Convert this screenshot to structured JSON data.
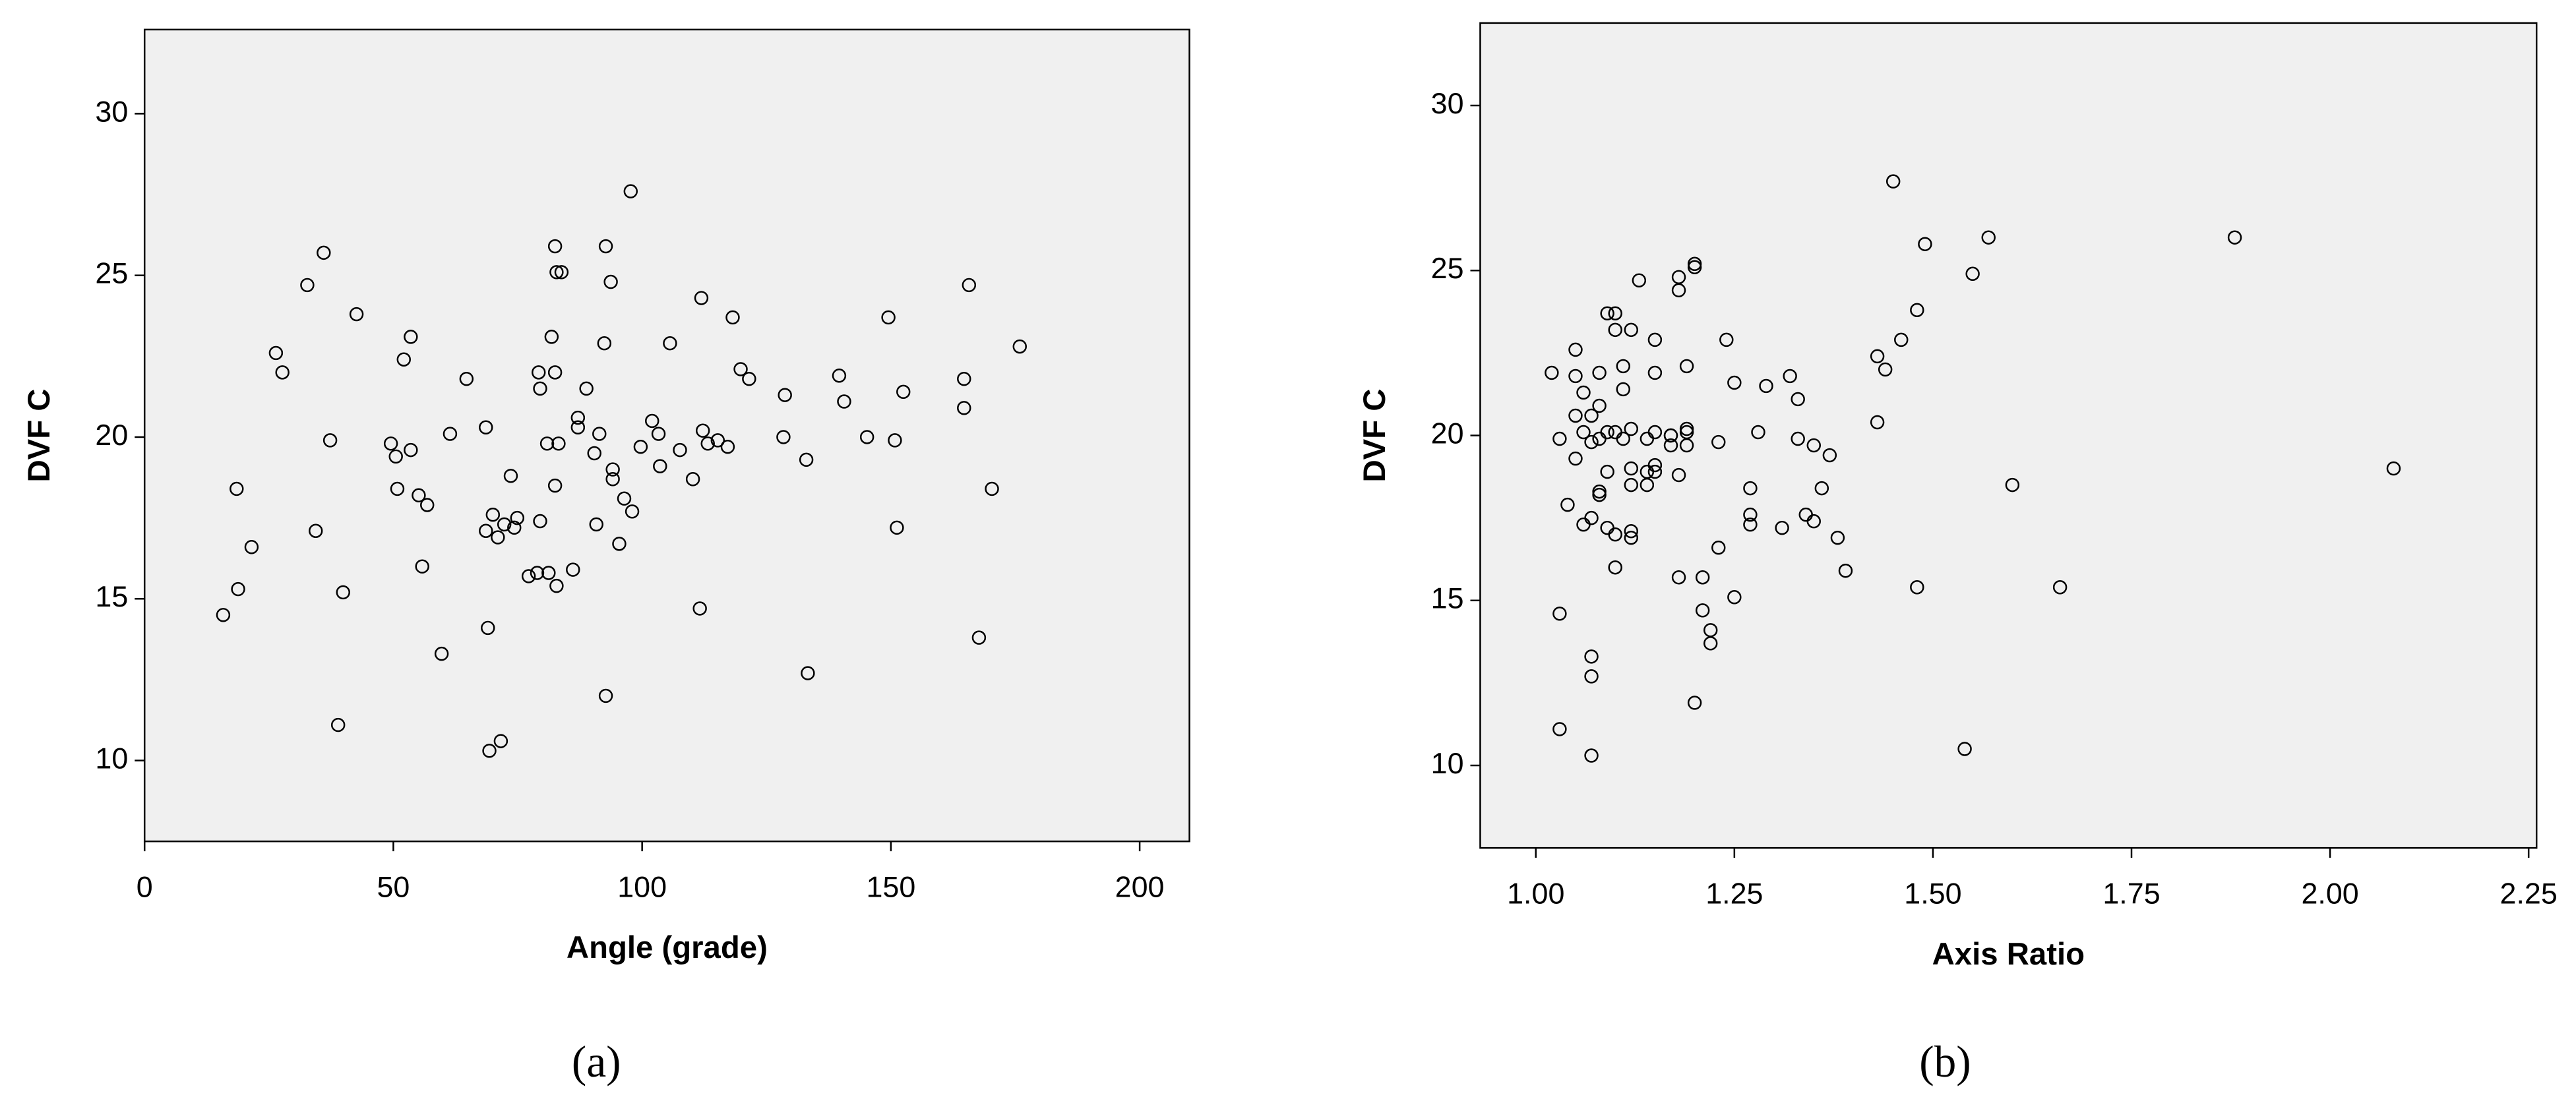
{
  "chart_data": [
    {
      "type": "scatter",
      "caption": "(a)",
      "x_label": "Angle (grade)",
      "y_label": "DVF C",
      "color": "#000000",
      "plot_background": "#f0f0f0",
      "xlim": [
        0,
        210
      ],
      "ylim": [
        7.5,
        32.6
      ],
      "xticks": [
        0,
        50,
        100,
        150,
        200
      ],
      "yticks": [
        10,
        15,
        20,
        25,
        30
      ],
      "x": [
        15.8,
        18.5,
        18.8,
        21.5,
        26.4,
        27.7,
        32.7,
        34.4,
        36.0,
        37.3,
        38.9,
        39.9,
        42.6,
        49.5,
        50.5,
        50.8,
        52.1,
        53.5,
        53.5,
        55.1,
        55.8,
        56.8,
        59.7,
        61.4,
        64.7,
        68.6,
        68.6,
        69.0,
        69.3,
        70.0,
        71.0,
        71.6,
        72.3,
        73.6,
        74.3,
        74.9,
        77.2,
        78.9,
        79.2,
        79.5,
        79.5,
        80.9,
        81.2,
        81.8,
        82.5,
        82.5,
        82.5,
        82.8,
        82.8,
        83.2,
        83.8,
        86.1,
        87.1,
        87.1,
        88.8,
        90.4,
        90.8,
        91.4,
        92.4,
        92.7,
        92.7,
        93.7,
        94.1,
        94.1,
        95.4,
        96.4,
        97.7,
        98.0,
        99.7,
        102.0,
        103.3,
        103.6,
        105.6,
        107.6,
        110.2,
        111.6,
        111.9,
        112.2,
        113.2,
        115.2,
        117.2,
        118.2,
        119.8,
        121.5,
        128.4,
        128.7,
        133.0,
        133.3,
        139.6,
        140.6,
        145.2,
        149.5,
        150.8,
        151.2,
        152.5,
        164.7,
        164.7,
        165.7,
        167.7,
        170.3,
        175.9
      ],
      "values": [
        14.5,
        18.4,
        15.3,
        16.6,
        22.6,
        22.0,
        24.7,
        17.1,
        25.7,
        19.9,
        11.1,
        15.2,
        23.8,
        19.8,
        19.4,
        18.4,
        22.4,
        23.1,
        19.6,
        18.2,
        16.0,
        17.9,
        13.3,
        20.1,
        21.8,
        20.3,
        17.1,
        14.1,
        10.3,
        17.6,
        16.9,
        10.6,
        17.3,
        18.8,
        17.2,
        17.5,
        15.7,
        15.8,
        22.0,
        21.5,
        17.4,
        19.8,
        15.8,
        23.1,
        25.9,
        22.0,
        18.5,
        15.4,
        25.1,
        19.8,
        25.1,
        15.9,
        20.6,
        20.3,
        21.5,
        19.5,
        17.3,
        20.1,
        22.9,
        25.9,
        12.0,
        24.8,
        19.0,
        18.7,
        16.7,
        18.1,
        27.6,
        17.7,
        19.7,
        20.5,
        20.1,
        19.1,
        22.9,
        19.6,
        18.7,
        14.7,
        24.3,
        20.2,
        19.8,
        19.9,
        19.7,
        23.7,
        22.1,
        21.8,
        20.0,
        21.3,
        19.3,
        12.7,
        21.9,
        21.1,
        20.0,
        23.7,
        19.9,
        17.2,
        21.4,
        21.8,
        20.9,
        24.7,
        13.8,
        18.4,
        22.8
      ]
    },
    {
      "type": "scatter",
      "caption": "(b)",
      "x_label": "Axis Ratio",
      "y_label": "DVF C",
      "color": "#000000",
      "plot_background": "#f0f0f0",
      "xlim": [
        0.93,
        2.26
      ],
      "ylim": [
        7.5,
        32.5
      ],
      "xticks": [
        {
          "value": 1,
          "label": "1.00"
        },
        1.25,
        {
          "value": 1.5,
          "label": "1.50"
        },
        1.75,
        {
          "value": 2,
          "label": "2.00"
        },
        2.25
      ],
      "yticks": [
        10,
        15,
        20,
        25,
        30
      ],
      "x": [
        1.02,
        1.03,
        1.03,
        1.03,
        1.04,
        1.05,
        1.05,
        1.05,
        1.05,
        1.06,
        1.06,
        1.06,
        1.07,
        1.07,
        1.07,
        1.07,
        1.07,
        1.07,
        1.08,
        1.08,
        1.08,
        1.08,
        1.08,
        1.09,
        1.09,
        1.09,
        1.09,
        1.1,
        1.1,
        1.1,
        1.1,
        1.1,
        1.11,
        1.11,
        1.11,
        1.12,
        1.12,
        1.12,
        1.12,
        1.12,
        1.12,
        1.13,
        1.14,
        1.14,
        1.14,
        1.15,
        1.15,
        1.15,
        1.15,
        1.15,
        1.17,
        1.17,
        1.17,
        1.18,
        1.18,
        1.18,
        1.18,
        1.19,
        1.19,
        1.19,
        1.19,
        1.2,
        1.2,
        1.2,
        1.21,
        1.21,
        1.22,
        1.22,
        1.23,
        1.23,
        1.24,
        1.25,
        1.25,
        1.27,
        1.27,
        1.27,
        1.28,
        1.29,
        1.31,
        1.32,
        1.33,
        1.33,
        1.34,
        1.35,
        1.35,
        1.36,
        1.37,
        1.38,
        1.39,
        1.43,
        1.43,
        1.44,
        1.46,
        1.45,
        1.48,
        1.49,
        1.48,
        1.55,
        1.54,
        1.57,
        1.6,
        1.66,
        1.88,
        2.08
      ],
      "values": [
        21.9,
        19.9,
        14.6,
        11.1,
        17.9,
        22.6,
        19.3,
        21.8,
        20.6,
        21.3,
        17.3,
        20.1,
        13.3,
        20.6,
        12.7,
        19.8,
        17.5,
        10.3,
        19.9,
        21.9,
        18.2,
        20.9,
        18.3,
        18.9,
        17.2,
        20.1,
        23.7,
        17.0,
        16.0,
        20.1,
        23.2,
        23.7,
        21.4,
        22.1,
        19.9,
        16.9,
        18.5,
        23.2,
        17.1,
        19.0,
        20.2,
        24.7,
        18.9,
        19.9,
        18.5,
        22.9,
        21.9,
        20.1,
        19.1,
        18.9,
        20.0,
        20.0,
        19.7,
        24.8,
        15.7,
        24.4,
        18.8,
        22.1,
        19.7,
        20.2,
        20.1,
        25.1,
        25.2,
        11.9,
        14.7,
        15.7,
        14.1,
        13.7,
        16.6,
        19.8,
        22.9,
        21.6,
        15.1,
        18.4,
        17.6,
        17.3,
        20.1,
        21.5,
        17.2,
        21.8,
        21.1,
        19.9,
        17.6,
        17.4,
        19.7,
        18.4,
        19.4,
        16.9,
        15.9,
        20.4,
        22.4,
        22.0,
        22.9,
        27.7,
        23.8,
        25.8,
        15.4,
        24.9,
        10.5,
        26.0,
        18.5,
        15.4,
        26.0,
        19.0
      ]
    }
  ]
}
